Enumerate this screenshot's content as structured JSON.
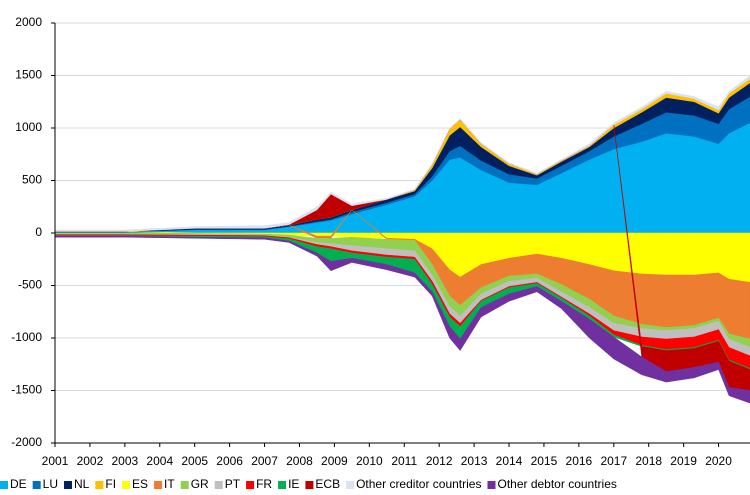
{
  "chart_data": {
    "type": "area",
    "x": [
      2001,
      2003,
      2005,
      2007,
      2007.7,
      2008.5,
      2008.9,
      2009.5,
      2010.5,
      2011.3,
      2011.8,
      2012.3,
      2012.6,
      2013.2,
      2014,
      2014.8,
      2015.5,
      2016.3,
      2017,
      2017.8,
      2018.5,
      2019.3,
      2020,
      2020.3,
      2020.9
    ],
    "series": [
      {
        "name": "DE",
        "color": "#00b0f0",
        "values": [
          10,
          10,
          30,
          30,
          60,
          100,
          120,
          180,
          270,
          350,
          500,
          700,
          720,
          600,
          480,
          460,
          570,
          700,
          800,
          870,
          950,
          920,
          850,
          950,
          1050
        ]
      },
      {
        "name": "LU",
        "color": "#0070c0",
        "values": [
          0,
          0,
          5,
          5,
          5,
          10,
          10,
          20,
          20,
          20,
          40,
          80,
          110,
          90,
          80,
          60,
          70,
          80,
          120,
          170,
          200,
          200,
          190,
          230,
          250
        ]
      },
      {
        "name": "NL",
        "color": "#002060",
        "values": [
          5,
          5,
          10,
          10,
          10,
          20,
          20,
          20,
          30,
          30,
          80,
          150,
          180,
          130,
          80,
          30,
          40,
          40,
          80,
          110,
          140,
          130,
          100,
          110,
          130
        ]
      },
      {
        "name": "FI",
        "color": "#ffc000",
        "values": [
          0,
          0,
          0,
          0,
          0,
          0,
          0,
          0,
          0,
          10,
          30,
          60,
          70,
          30,
          20,
          10,
          10,
          10,
          30,
          30,
          40,
          30,
          30,
          40,
          40
        ]
      },
      {
        "name": "ES",
        "color": "#ffff00",
        "values": [
          0,
          0,
          -5,
          -10,
          -20,
          -30,
          -30,
          -40,
          -50,
          -60,
          -150,
          -350,
          -420,
          -300,
          -240,
          -200,
          -240,
          -300,
          -360,
          -390,
          -400,
          -400,
          -380,
          -440,
          -470
        ]
      },
      {
        "name": "IT",
        "color": "#ed7d31",
        "values": [
          0,
          0,
          0,
          0,
          0,
          -20,
          -20,
          0,
          -10,
          -10,
          -150,
          -250,
          -270,
          -220,
          -170,
          -190,
          -250,
          -330,
          -430,
          -480,
          -500,
          -480,
          -430,
          -520,
          -540
        ]
      },
      {
        "name": "GR",
        "color": "#92d050",
        "values": [
          -10,
          -10,
          -10,
          -10,
          -20,
          -40,
          -50,
          -80,
          -90,
          -100,
          -100,
          -100,
          -100,
          -60,
          -50,
          -40,
          -70,
          -80,
          -70,
          -40,
          -30,
          -30,
          -30,
          -50,
          -80
        ]
      },
      {
        "name": "PT",
        "color": "#bfbfbf",
        "values": [
          -5,
          -5,
          -5,
          -5,
          -5,
          -20,
          -30,
          -50,
          -60,
          -60,
          -60,
          -70,
          -70,
          -60,
          -50,
          -40,
          -50,
          -60,
          -70,
          -80,
          -80,
          -80,
          -80,
          -80,
          -80
        ]
      },
      {
        "name": "FR",
        "color": "#ff0000",
        "values": [
          -10,
          -10,
          -10,
          -10,
          -10,
          -20,
          -20,
          -20,
          -20,
          -20,
          -30,
          -30,
          -30,
          -10,
          -10,
          -10,
          -10,
          -20,
          -40,
          -80,
          -100,
          -100,
          -100,
          -120,
          -120
        ]
      },
      {
        "name": "IE",
        "color": "#00b050",
        "values": [
          -5,
          -5,
          -10,
          -10,
          -20,
          -60,
          -120,
          -50,
          -70,
          -130,
          -70,
          -90,
          -120,
          -60,
          -60,
          -30,
          -30,
          -30,
          -20,
          -10,
          -10,
          -10,
          -10,
          -10,
          -10
        ]
      },
      {
        "name": "ECB",
        "color": "#c00000",
        "values": [
          0,
          0,
          0,
          0,
          5,
          90,
          220,
          40,
          0,
          0,
          0,
          0,
          0,
          0,
          0,
          0,
          0,
          0,
          0,
          -100,
          -200,
          -180,
          -200,
          -250,
          -200
        ]
      },
      {
        "name": "Other creditor countries",
        "color": "#dae3f3",
        "values": [
          15,
          15,
          15,
          25,
          20,
          30,
          20,
          20,
          10,
          10,
          10,
          10,
          10,
          10,
          10,
          10,
          10,
          20,
          20,
          20,
          20,
          20,
          30,
          20,
          30
        ]
      },
      {
        "name": "Other debtor countries",
        "color": "#7030a0",
        "values": [
          -10,
          -10,
          -10,
          -15,
          -15,
          -30,
          -90,
          -40,
          -50,
          -40,
          -40,
          -110,
          -110,
          -90,
          -70,
          -50,
          -70,
          -180,
          -210,
          -170,
          -100,
          -100,
          -70,
          -80,
          -120
        ]
      }
    ],
    "xlim": [
      2001,
      2020.9
    ],
    "xticks": [
      2001,
      2002,
      2003,
      2004,
      2005,
      2006,
      2007,
      2008,
      2009,
      2010,
      2011,
      2012,
      2013,
      2014,
      2015,
      2016,
      2017,
      2018,
      2019,
      2020
    ],
    "ylim": [
      -2000,
      2000
    ],
    "yticks": [
      -2000,
      -1500,
      -1000,
      -500,
      0,
      500,
      1000,
      1500,
      2000
    ],
    "grid": true,
    "legend": "bottom"
  }
}
